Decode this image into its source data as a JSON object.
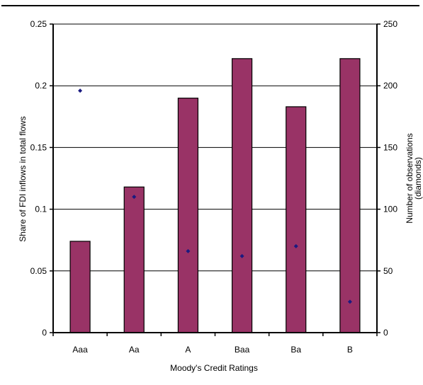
{
  "chart_data": {
    "type": "bar",
    "categories": [
      "Aaa",
      "Aa",
      "A",
      "Baa",
      "Ba",
      "B"
    ],
    "series": [
      {
        "type": "bar",
        "axis": "left",
        "color": "#993366",
        "values": [
          0.074,
          0.118,
          0.19,
          0.222,
          0.183,
          0.222
        ]
      },
      {
        "type": "scatter",
        "axis": "right",
        "color": "#1a1a80",
        "values": [
          196,
          110,
          66,
          62,
          70,
          25
        ]
      }
    ],
    "xlabel": "Moody's Credit Ratings",
    "ylabel": "Share of FDI inflows in total flows",
    "y2label_line1": "Number of observations",
    "y2label_line2": "(diamonds)",
    "ylim": [
      0,
      0.25
    ],
    "y2lim": [
      0,
      250
    ],
    "yticks": [
      "0",
      "0.05",
      "0.1",
      "0.15",
      "0.2",
      "0.25"
    ],
    "y2ticks": [
      "0",
      "50",
      "100",
      "150",
      "200",
      "250"
    ],
    "grid": true,
    "legend": "none"
  }
}
